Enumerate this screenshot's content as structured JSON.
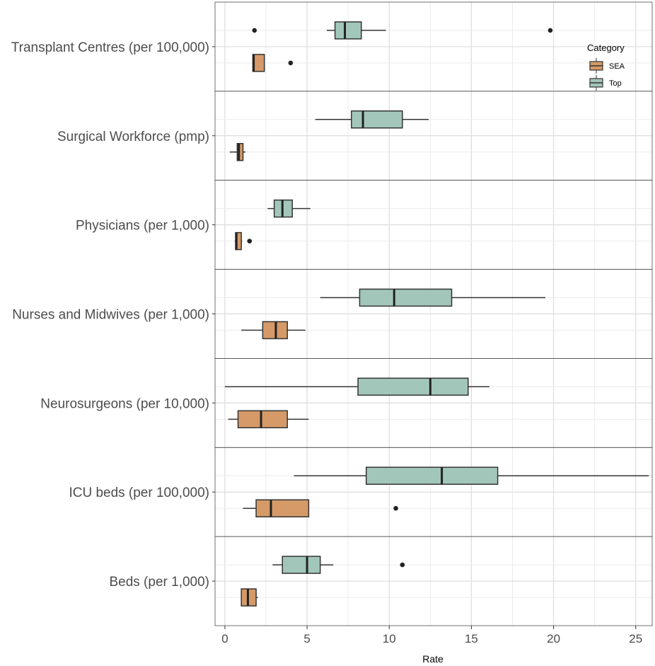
{
  "chart_data": {
    "type": "boxplot",
    "orientation": "horizontal",
    "facets": [
      "Transplant Centres (per 100,000)",
      "Surgical Workforce (pmp)",
      "Physicians (per 1,000)",
      "Nurses and Midwives (per 1,000)",
      "Neurosurgeons (per 10,000)",
      "ICU beds (per 100,000)",
      "Beds (per 1,000)"
    ],
    "series": [
      {
        "name": "SEA",
        "color": "#d59a68",
        "boxes": [
          {
            "facet": "Transplant Centres (per 100,000)",
            "whisker_low": 1.7,
            "q1": 1.7,
            "median": 1.75,
            "q3": 2.4,
            "whisker_high": 2.4,
            "outliers": [
              4.0
            ]
          },
          {
            "facet": "Surgical Workforce (pmp)",
            "whisker_low": 0.3,
            "q1": 0.75,
            "median": 0.85,
            "q3": 1.1,
            "whisker_high": 1.25,
            "outliers": []
          },
          {
            "facet": "Physicians (per 1,000)",
            "whisker_low": 0.6,
            "q1": 0.65,
            "median": 0.7,
            "q3": 1.0,
            "whisker_high": 1.05,
            "outliers": [
              1.5
            ]
          },
          {
            "facet": "Nurses and Midwives (per 1,000)",
            "whisker_low": 1.0,
            "q1": 2.3,
            "median": 3.1,
            "q3": 3.8,
            "whisker_high": 4.9,
            "outliers": []
          },
          {
            "facet": "Neurosurgeons (per 10,000)",
            "whisker_low": 0.2,
            "q1": 0.8,
            "median": 2.2,
            "q3": 3.8,
            "whisker_high": 5.1,
            "outliers": []
          },
          {
            "facet": "ICU beds (per 100,000)",
            "whisker_low": 1.1,
            "q1": 1.9,
            "median": 2.8,
            "q3": 5.1,
            "whisker_high": 5.1,
            "outliers": [
              10.4
            ]
          },
          {
            "facet": "Beds (per 1,000)",
            "whisker_low": 1.0,
            "q1": 1.0,
            "median": 1.4,
            "q3": 1.9,
            "whisker_high": 2.0,
            "outliers": []
          }
        ]
      },
      {
        "name": "Top",
        "color": "#a3c6bb",
        "boxes": [
          {
            "facet": "Transplant Centres (per 100,000)",
            "whisker_low": 6.2,
            "q1": 6.7,
            "median": 7.3,
            "q3": 8.3,
            "whisker_high": 9.8,
            "outliers": [
              1.8,
              19.8
            ]
          },
          {
            "facet": "Surgical Workforce (pmp)",
            "whisker_low": 5.5,
            "q1": 7.7,
            "median": 8.4,
            "q3": 10.8,
            "whisker_high": 12.4,
            "outliers": []
          },
          {
            "facet": "Physicians (per 1,000)",
            "whisker_low": 2.6,
            "q1": 3.0,
            "median": 3.5,
            "q3": 4.1,
            "whisker_high": 5.2,
            "outliers": []
          },
          {
            "facet": "Nurses and Midwives (per 1,000)",
            "whisker_low": 5.8,
            "q1": 8.2,
            "median": 10.3,
            "q3": 13.8,
            "whisker_high": 19.5,
            "outliers": []
          },
          {
            "facet": "Neurosurgeons (per 10,000)",
            "whisker_low": 0.0,
            "q1": 8.1,
            "median": 12.5,
            "q3": 14.8,
            "whisker_high": 16.1,
            "outliers": []
          },
          {
            "facet": "ICU beds (per 100,000)",
            "whisker_low": 4.2,
            "q1": 8.6,
            "median": 13.2,
            "q3": 16.6,
            "whisker_high": 25.8,
            "outliers": []
          },
          {
            "facet": "Beds (per 1,000)",
            "whisker_low": 2.9,
            "q1": 3.5,
            "median": 5.0,
            "q3": 5.8,
            "whisker_high": 6.6,
            "outliers": [
              10.8
            ]
          }
        ]
      }
    ],
    "xlabel": "Rate",
    "xlim": [
      -0.6,
      26.0
    ],
    "xticks": [
      0,
      5,
      10,
      15,
      20,
      25
    ],
    "grid": true,
    "legend": {
      "title": "Category",
      "position": "top-right",
      "entries": [
        "SEA",
        "Top"
      ]
    }
  }
}
